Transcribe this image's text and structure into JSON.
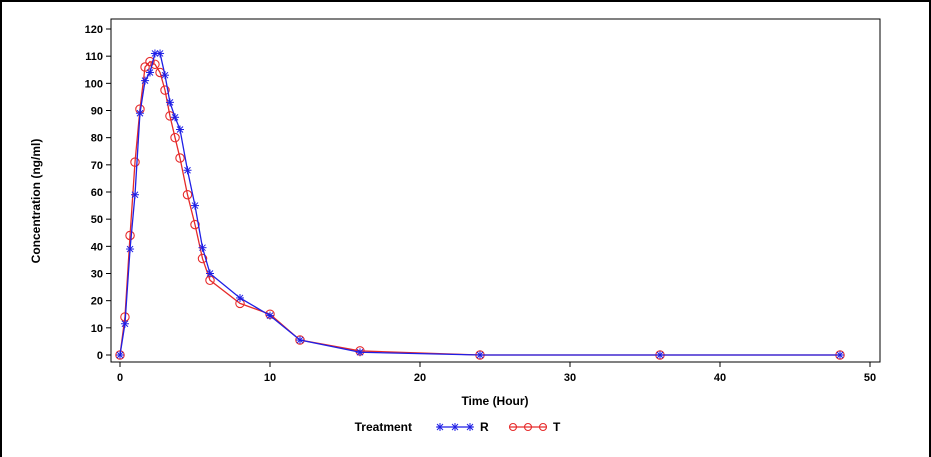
{
  "chart_data": {
    "type": "line",
    "xlabel": "Time (Hour)",
    "ylabel": "Concentration (ng/ml)",
    "xlim": [
      0,
      50
    ],
    "ylim": [
      0,
      120
    ],
    "x_ticks": [
      0,
      10,
      20,
      30,
      40,
      50
    ],
    "y_ticks": [
      0,
      10,
      20,
      30,
      40,
      50,
      60,
      70,
      80,
      90,
      100,
      110,
      120
    ],
    "grid": false,
    "legend": {
      "title": "Treatment",
      "position": "bottom"
    },
    "series": [
      {
        "name": "R",
        "color": "#1f1fe6",
        "marker": "star",
        "x": [
          0,
          0.33,
          0.67,
          1,
          1.33,
          1.67,
          2,
          2.33,
          2.67,
          3,
          3.33,
          3.67,
          4,
          4.5,
          5,
          5.5,
          6,
          8,
          10,
          12,
          16,
          24,
          36,
          48
        ],
        "y": [
          0,
          11.5,
          39,
          59,
          89,
          101,
          104,
          111,
          111,
          103,
          93,
          87.5,
          83,
          68,
          55,
          39.5,
          30,
          21,
          14.5,
          5.5,
          1,
          0,
          0,
          0
        ]
      },
      {
        "name": "T",
        "color": "#e62a2a",
        "marker": "circle",
        "x": [
          0,
          0.33,
          0.67,
          1,
          1.33,
          1.67,
          2,
          2.33,
          2.67,
          3,
          3.33,
          3.67,
          4,
          4.5,
          5,
          5.5,
          6,
          8,
          10,
          12,
          16,
          24,
          36,
          48
        ],
        "y": [
          0,
          14,
          44,
          71,
          90.5,
          106,
          108,
          107,
          104,
          97.5,
          88,
          80,
          72.5,
          59,
          48,
          35.5,
          27.5,
          19,
          15,
          5.5,
          1.5,
          0,
          0,
          0
        ]
      }
    ]
  }
}
